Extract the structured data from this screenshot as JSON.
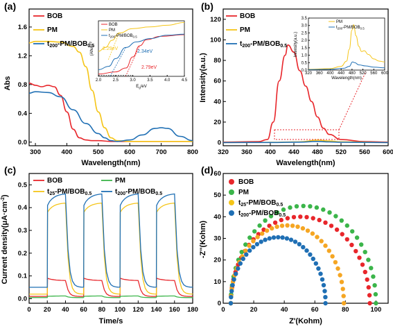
{
  "colors": {
    "red": "#e8262b",
    "yellow": "#f5c518",
    "blue": "#1f6fb4",
    "green": "#3bb54a",
    "orange": "#f5a623"
  },
  "panels": {
    "a": {
      "label": "(a)",
      "xlabel": "Wavelength(nm)",
      "ylabel": "Abs",
      "xticks": [
        "300",
        "400",
        "500",
        "600",
        "700",
        "800"
      ],
      "yticks": [
        "0.0",
        "0.4",
        "0.8",
        "1.2",
        "1.6"
      ],
      "legend": [
        {
          "text": "BOB",
          "sub": ""
        },
        {
          "text": "PM",
          "sub": ""
        },
        {
          "text": "t",
          "sub": "200",
          "text2": "-PM/BOB",
          "sub2": "0.5"
        }
      ],
      "inset": {
        "xlabel": "E",
        "xlabel_sub": "g",
        "xlabel_rest": "/eV",
        "ylabel": "(Ahν)",
        "ylabel_sup": "1/2",
        "xticks": [
          "2.0",
          "2.5",
          "3.0",
          "3.5",
          "4.0",
          "4.5"
        ],
        "legend": [
          {
            "text": "BOB",
            "sub": ""
          },
          {
            "text": "PM",
            "sub": ""
          },
          {
            "text": "t",
            "sub": "200",
            "text2": "-PM/BOB",
            "sub2": "0.5"
          }
        ],
        "annotations": [
          "2.29eV",
          "2.34eV",
          "2.79eV"
        ]
      }
    },
    "b": {
      "label": "(b)",
      "xlabel": "Wavelength(nm)",
      "ylabel": "Intensity(a.u.)",
      "xticks": [
        "320",
        "360",
        "400",
        "440",
        "480",
        "520",
        "560",
        "600"
      ],
      "yticks": [
        "0",
        "20",
        "40",
        "60",
        "80",
        "100",
        "120"
      ],
      "legend": [
        {
          "text": "BOB",
          "sub": ""
        },
        {
          "text": "PM",
          "sub": ""
        },
        {
          "text": "t",
          "sub": "200",
          "text2": "-PM/BOB",
          "sub2": "0.5"
        }
      ],
      "inset": {
        "xlabel": "Wavelength(nm)",
        "ylabel": "Intensity(a.u.)",
        "xticks": [
          "320",
          "360",
          "400",
          "440",
          "480",
          "520",
          "560",
          "600"
        ],
        "yticks": [
          "0.0",
          "0.5",
          "1.0",
          "1.5",
          "2.0",
          "2.5",
          "3.0",
          "3.5"
        ],
        "legend": [
          {
            "text": "PM",
            "sub": ""
          },
          {
            "text": "t",
            "sub": "200",
            "text2": "-PM/BOB",
            "sub2": "0.5"
          }
        ]
      }
    },
    "c": {
      "label": "(c)",
      "xlabel": "Time/s",
      "ylabel": "Current density(μA·cm",
      "ylabel_sup": "-2",
      "ylabel_end": ")",
      "xticks": [
        "0",
        "20",
        "40",
        "60",
        "80",
        "100",
        "120",
        "140",
        "160",
        "180"
      ],
      "yticks": [
        "0.0",
        "0.1",
        "0.2",
        "0.3",
        "0.4",
        "0.5"
      ],
      "legend": [
        {
          "text": "BOB",
          "sub": ""
        },
        {
          "text": "PM",
          "sub": ""
        },
        {
          "text": "t",
          "sub": "25",
          "text2": "-PM/BOB",
          "sub2": "0.5"
        },
        {
          "text": "t",
          "sub": "200",
          "text2": "-PM/BOB",
          "sub2": "0.5"
        }
      ]
    },
    "d": {
      "label": "(d)",
      "xlabel": "Z'(Kohm)",
      "ylabel": "-Z''(Kohm)",
      "xticks": [
        "0",
        "20",
        "40",
        "60",
        "80",
        "100"
      ],
      "yticks": [
        "0",
        "10",
        "20",
        "30",
        "40",
        "50",
        "60"
      ],
      "legend": [
        {
          "text": "BOB",
          "sub": ""
        },
        {
          "text": "PM",
          "sub": ""
        },
        {
          "text": "t",
          "sub": "25",
          "text2": "-PM/BOB",
          "sub2": "0.5"
        },
        {
          "text": "t",
          "sub": "200",
          "text2": "-PM/BOB",
          "sub2": "0.5"
        }
      ]
    }
  },
  "chart_data": [
    {
      "type": "line",
      "panel": "a",
      "xlabel": "Wavelength(nm)",
      "ylabel": "Abs",
      "xlim": [
        280,
        800
      ],
      "ylim": [
        -0.05,
        1.85
      ],
      "series": [
        {
          "name": "BOB",
          "color": "red",
          "x": [
            280,
            300,
            320,
            340,
            360,
            380,
            400,
            420,
            440,
            460,
            480,
            500,
            540,
            600,
            700,
            800
          ],
          "y": [
            0.82,
            0.79,
            0.77,
            0.79,
            0.77,
            0.65,
            0.42,
            0.18,
            0.06,
            0.03,
            0.02,
            0.02,
            0.01,
            0.01,
            0.01,
            0.01
          ]
        },
        {
          "name": "PM",
          "color": "yellow",
          "x": [
            280,
            300,
            340,
            380,
            420,
            440,
            460,
            480,
            500,
            520,
            540,
            560,
            600,
            700,
            800
          ],
          "y": [
            1.38,
            1.4,
            1.4,
            1.39,
            1.33,
            1.25,
            1.05,
            0.72,
            0.42,
            0.2,
            0.06,
            0.02,
            0.01,
            0.01,
            0.01
          ]
        },
        {
          "name": "t200-PM/BOB0.5",
          "color": "blue",
          "x": [
            280,
            300,
            340,
            380,
            420,
            460,
            500,
            520,
            540,
            560,
            600,
            640,
            680,
            700,
            720,
            760,
            800
          ],
          "y": [
            0.68,
            0.7,
            0.69,
            0.63,
            0.45,
            0.26,
            0.12,
            0.06,
            0.02,
            0.01,
            0.03,
            0.1,
            0.19,
            0.2,
            0.19,
            0.08,
            0.02
          ]
        }
      ]
    },
    {
      "type": "line",
      "panel": "b",
      "xlabel": "Wavelength(nm)",
      "ylabel": "Intensity(a.u.)",
      "xlim": [
        320,
        600
      ],
      "ylim": [
        -3,
        130
      ],
      "series": [
        {
          "name": "BOB",
          "color": "red",
          "x": [
            320,
            380,
            395,
            405,
            415,
            425,
            430,
            440,
            450,
            460,
            470,
            480,
            490,
            500,
            520,
            560,
            600
          ],
          "y": [
            0.5,
            1,
            3,
            20,
            60,
            85,
            95,
            88,
            70,
            55,
            40,
            25,
            14,
            8,
            3,
            1,
            0.5
          ]
        },
        {
          "name": "PM",
          "color": "yellow",
          "x": [
            320,
            400,
            450,
            480,
            500,
            520,
            600
          ],
          "y": [
            0.2,
            0.3,
            0.8,
            2.5,
            1.6,
            0.8,
            0.2
          ]
        },
        {
          "name": "t200-PM/BOB0.5",
          "color": "blue",
          "x": [
            320,
            400,
            450,
            480,
            500,
            520,
            600
          ],
          "y": [
            0.1,
            0.2,
            0.5,
            1.2,
            0.7,
            0.4,
            0.1
          ]
        }
      ]
    },
    {
      "type": "line",
      "panel": "c",
      "xlabel": "Time/s",
      "ylabel": "Current density(μA·cm-2)",
      "xlim": [
        0,
        180
      ],
      "ylim": [
        -0.02,
        0.55
      ],
      "on_intervals": [
        [
          20,
          40
        ],
        [
          60,
          80
        ],
        [
          100,
          120
        ],
        [
          140,
          160
        ]
      ],
      "series": [
        {
          "name": "BOB",
          "color": "red",
          "baseline": 0.01,
          "on_start": 0.09,
          "on_end": 0.08
        },
        {
          "name": "PM",
          "color": "green",
          "baseline": 0.005,
          "on_start": 0.01,
          "on_end": 0.012
        },
        {
          "name": "t25-PM/BOB0.5",
          "color": "yellow",
          "baseline": 0.02,
          "on_start": 0.38,
          "on_end": 0.42
        },
        {
          "name": "t200-PM/BOB0.5",
          "color": "blue",
          "baseline": 0.05,
          "on_start": 0.41,
          "on_end": 0.46
        }
      ]
    },
    {
      "type": "scatter",
      "panel": "d",
      "xlabel": "Z'(Kohm)",
      "ylabel": "-Z''(Kohm)",
      "xlim": [
        0,
        108
      ],
      "ylim": [
        0,
        60
      ],
      "series": [
        {
          "name": "BOB",
          "color": "red",
          "x_start": 5,
          "x_end": 96,
          "peak": 40
        },
        {
          "name": "PM",
          "color": "green",
          "x_start": 5,
          "x_end": 100,
          "peak": 45
        },
        {
          "name": "t25-PM/BOB0.5",
          "color": "orange",
          "x_start": 5,
          "x_end": 79,
          "peak": 36
        },
        {
          "name": "t200-PM/BOB0.5",
          "color": "blue",
          "x_start": 5,
          "x_end": 67,
          "peak": 30.5
        }
      ]
    }
  ]
}
